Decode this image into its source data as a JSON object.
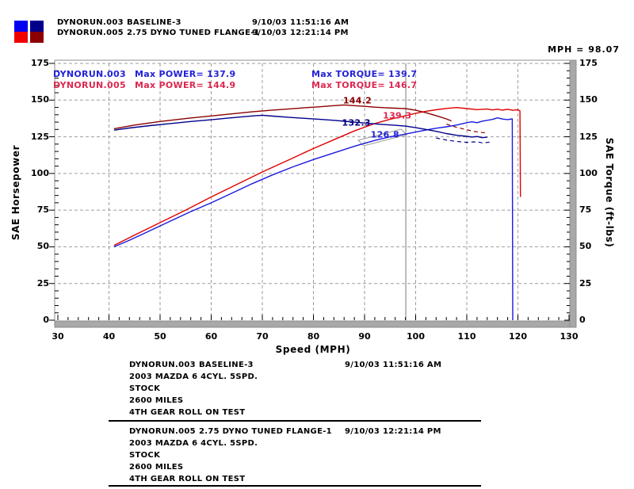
{
  "header": {
    "swatches": [
      {
        "top": "#0000f0",
        "bottom": "#f00000"
      },
      {
        "top": "#00008b",
        "bottom": "#8b0000"
      }
    ],
    "runs": [
      {
        "file": "DYNORUN.003",
        "desc": "BASELINE-3",
        "datetime": "9/10/03 11:51:16 AM"
      },
      {
        "file": "DYNORUN.005",
        "desc": "2.75 DYNO TUNED FLANGE-1",
        "datetime": "9/10/03 12:21:14 PM"
      }
    ],
    "cursor_readout": "MPH = 98.07"
  },
  "legend": {
    "rows": [
      {
        "file": "DYNORUN.003",
        "power": "Max POWER= 137.9",
        "torque": "Max TORQUE= 139.7",
        "color": "#2222d8"
      },
      {
        "file": "DYNORUN.005",
        "power": "Max POWER= 144.9",
        "torque": "Max TORQUE= 146.7",
        "color": "#dc2850"
      }
    ]
  },
  "chart_data": {
    "type": "line",
    "title": "",
    "x": {
      "label": "Speed (MPH)",
      "min": 30,
      "max": 130,
      "major_step": 10,
      "minor_step": 2,
      "ticks": [
        30,
        40,
        50,
        60,
        70,
        80,
        90,
        100,
        110,
        120,
        130
      ]
    },
    "y_left": {
      "label": "SAE Horsepower",
      "min": 0,
      "max": 175,
      "major_step": 25,
      "minor_step": 5,
      "ticks": [
        0,
        25,
        50,
        75,
        100,
        125,
        150,
        175
      ]
    },
    "y_right": {
      "label": "SAE Torque (ft-lbs)",
      "min": 0,
      "max": 175,
      "ticks": [
        0,
        25,
        50,
        75,
        100,
        125,
        150,
        175
      ]
    },
    "cursor_mph": 98.07,
    "grid": {
      "color": "#9e9e9e",
      "dash": "4 3",
      "cursor_color": "#7a7a7a",
      "frame_color": "#8c8c8c",
      "band_fill": "#a8a8a8"
    },
    "series": [
      {
        "name": "DYNORUN.003 Power",
        "color": "#1a1ae0",
        "width": 1.4,
        "dash": null,
        "points": [
          [
            41,
            50
          ],
          [
            44,
            54.5
          ],
          [
            48,
            61
          ],
          [
            52,
            67.5
          ],
          [
            56,
            74
          ],
          [
            60,
            80
          ],
          [
            64,
            86.5
          ],
          [
            68,
            93
          ],
          [
            72,
            99
          ],
          [
            76,
            104.5
          ],
          [
            80,
            109.5
          ],
          [
            84,
            114
          ],
          [
            88,
            118.5
          ],
          [
            92,
            122.5
          ],
          [
            95,
            125
          ],
          [
            98,
            126.8
          ],
          [
            100,
            128.2
          ],
          [
            102,
            129.6
          ],
          [
            104,
            130.8
          ],
          [
            106,
            131.8
          ],
          [
            108,
            133
          ],
          [
            110,
            134.6
          ],
          [
            111,
            135.2
          ],
          [
            112,
            134.6
          ],
          [
            113,
            135.6
          ],
          [
            114,
            136.2
          ],
          [
            115,
            136.8
          ],
          [
            116,
            137.9
          ],
          [
            117,
            137.1
          ],
          [
            118,
            136.7
          ],
          [
            118.9,
            137.2
          ],
          [
            119,
            0
          ]
        ]
      },
      {
        "name": "DYNORUN.005 Power",
        "color": "#e00000",
        "width": 1.4,
        "dash": null,
        "points": [
          [
            41,
            51
          ],
          [
            45,
            58
          ],
          [
            50,
            66.5
          ],
          [
            55,
            75
          ],
          [
            60,
            84
          ],
          [
            65,
            92.5
          ],
          [
            70,
            101
          ],
          [
            75,
            109
          ],
          [
            80,
            117
          ],
          [
            84,
            123
          ],
          [
            88,
            129
          ],
          [
            92,
            134
          ],
          [
            95,
            137
          ],
          [
            98,
            139.3
          ],
          [
            100,
            141
          ],
          [
            102,
            142.4
          ],
          [
            104,
            143.4
          ],
          [
            106,
            144.3
          ],
          [
            108,
            144.9
          ],
          [
            110,
            144.2
          ],
          [
            112,
            143.5
          ],
          [
            114,
            143.9
          ],
          [
            115,
            143.3
          ],
          [
            116,
            143.8
          ],
          [
            117,
            143.2
          ],
          [
            118,
            143.7
          ],
          [
            119,
            143.1
          ],
          [
            120,
            143.4
          ],
          [
            120.4,
            142.6
          ],
          [
            120.5,
            84
          ]
        ]
      },
      {
        "name": "DYNORUN.003 Torque",
        "color": "#00008b",
        "width": 1.4,
        "dash": null,
        "points": [
          [
            41,
            129.5
          ],
          [
            44,
            131
          ],
          [
            48,
            132.6
          ],
          [
            52,
            134
          ],
          [
            56,
            135.4
          ],
          [
            60,
            136.6
          ],
          [
            63,
            137.6
          ],
          [
            66,
            138.6
          ],
          [
            68,
            139.2
          ],
          [
            70,
            139.7
          ],
          [
            72,
            139.1
          ],
          [
            75,
            138.3
          ],
          [
            78,
            137.6
          ],
          [
            81,
            137
          ],
          [
            84,
            136.2
          ],
          [
            87,
            135.3
          ],
          [
            90,
            134.4
          ],
          [
            93,
            133.5
          ],
          [
            96,
            132.8
          ],
          [
            98,
            132.3
          ],
          [
            100,
            131.2
          ],
          [
            102,
            130
          ],
          [
            104,
            128.7
          ],
          [
            106,
            127.2
          ],
          [
            108,
            126
          ],
          [
            110,
            125.3
          ],
          [
            111,
            124.8
          ],
          [
            112,
            125.2
          ],
          [
            113,
            124.4
          ],
          [
            114,
            124.7
          ]
        ]
      },
      {
        "name": "DYNORUN.003 Torque (raw)",
        "color": "#00008b",
        "width": 1.2,
        "dash": "5 4",
        "points": [
          [
            104,
            124.2
          ],
          [
            106,
            122.8
          ],
          [
            108,
            121.8
          ],
          [
            110,
            121.2
          ],
          [
            112,
            121.6
          ],
          [
            113,
            120.9
          ],
          [
            114.5,
            121.3
          ]
        ]
      },
      {
        "name": "DYNORUN.005 Torque",
        "color": "#8b0000",
        "width": 1.4,
        "dash": null,
        "points": [
          [
            41,
            130.5
          ],
          [
            45,
            133
          ],
          [
            50,
            135.4
          ],
          [
            55,
            137.4
          ],
          [
            60,
            139.2
          ],
          [
            64,
            140.6
          ],
          [
            68,
            142
          ],
          [
            72,
            143.2
          ],
          [
            75,
            143.9
          ],
          [
            78,
            144.7
          ],
          [
            81,
            145.4
          ],
          [
            84,
            146.2
          ],
          [
            86,
            146.7
          ],
          [
            88,
            146.2
          ],
          [
            90,
            145.7
          ],
          [
            92,
            145.2
          ],
          [
            94,
            144.8
          ],
          [
            96,
            144.5
          ],
          [
            98,
            144.2
          ],
          [
            100,
            143.1
          ],
          [
            102,
            141.4
          ],
          [
            104,
            139.4
          ],
          [
            106,
            137.2
          ],
          [
            107,
            135.8
          ]
        ]
      },
      {
        "name": "DYNORUN.005 Torque (raw)",
        "color": "#8b0000",
        "width": 1.2,
        "dash": "5 4",
        "points": [
          [
            106,
            133.6
          ],
          [
            108,
            131.4
          ],
          [
            110,
            129.8
          ],
          [
            111.5,
            128.6
          ],
          [
            113,
            127.9
          ],
          [
            114,
            127.5
          ]
        ]
      }
    ],
    "annotations": [
      {
        "text": "144.2",
        "color": "#8b0000",
        "mph": 88.6,
        "value": 149.6
      },
      {
        "text": "139.3",
        "color": "#dc2850",
        "mph": 96.4,
        "value": 139.4
      },
      {
        "text": "132.3",
        "color": "#000080",
        "mph": 88.4,
        "value": 134.5
      },
      {
        "text": "126.8",
        "color": "#2222d8",
        "mph": 94.0,
        "value": 126.4
      }
    ]
  },
  "details": [
    {
      "file": "DYNORUN.003",
      "desc": "BASELINE-3",
      "datetime": "9/10/03 11:51:16 AM",
      "lines": [
        "2003 MAZDA 6 4CYL. 5SPD.",
        "STOCK",
        "2600 MILES",
        "4TH GEAR ROLL ON TEST"
      ]
    },
    {
      "file": "DYNORUN.005",
      "desc": "2.75 DYNO TUNED FLANGE-1",
      "datetime": "9/10/03 12:21:14 PM",
      "lines": [
        "2003 MAZDA 6 4CYL. 5SPD.",
        "STOCK",
        "2600 MILES",
        "4TH GEAR ROLL ON TEST"
      ]
    }
  ]
}
